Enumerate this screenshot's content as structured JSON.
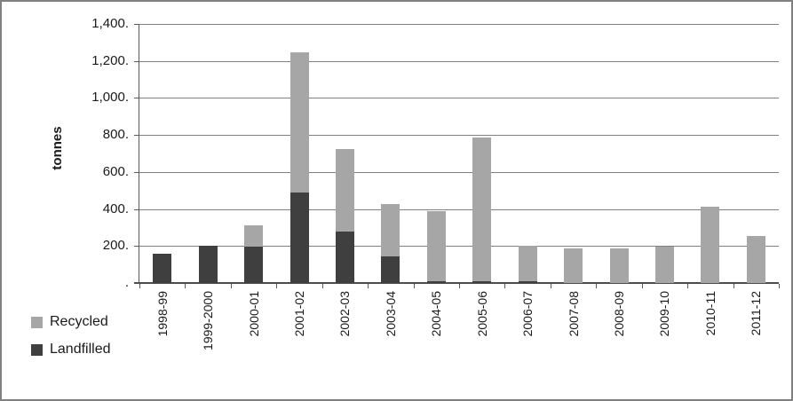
{
  "chart": {
    "title": "",
    "y_axis_title": "tonnes",
    "y_tick_labels": [
      "1,400.",
      "1,200.",
      "1,000.",
      "800.",
      "600.",
      "400.",
      "200.",
      "."
    ],
    "legend": [
      {
        "label": "Recycled",
        "color": "#a6a6a6"
      },
      {
        "label": "Landfilled",
        "color": "#3f3f3f"
      }
    ]
  },
  "chart_data": {
    "type": "bar",
    "stacked": true,
    "title": "",
    "xlabel": "",
    "ylabel": "tonnes",
    "ylim": [
      0,
      1400
    ],
    "ytick_step": 200,
    "grid": true,
    "legend_position": "bottom-left",
    "categories": [
      "1998-99",
      "1999-2000",
      "2000-01",
      "2001-02",
      "2002-03",
      "2003-04",
      "2004-05",
      "2005-06",
      "2006-07",
      "2007-08",
      "2008-09",
      "2009-10",
      "2010-11",
      "2011-12"
    ],
    "series": [
      {
        "name": "Landfilled",
        "color": "#3f3f3f",
        "values": [
          160,
          200,
          195,
          490,
          280,
          145,
          10,
          10,
          10,
          0,
          0,
          0,
          0,
          0
        ]
      },
      {
        "name": "Recycled",
        "color": "#a6a6a6",
        "values": [
          0,
          0,
          115,
          755,
          445,
          280,
          380,
          775,
          190,
          185,
          185,
          195,
          410,
          255
        ]
      }
    ],
    "totals": [
      160,
      200,
      310,
      1245,
      725,
      425,
      390,
      785,
      200,
      185,
      185,
      195,
      410,
      255
    ]
  }
}
